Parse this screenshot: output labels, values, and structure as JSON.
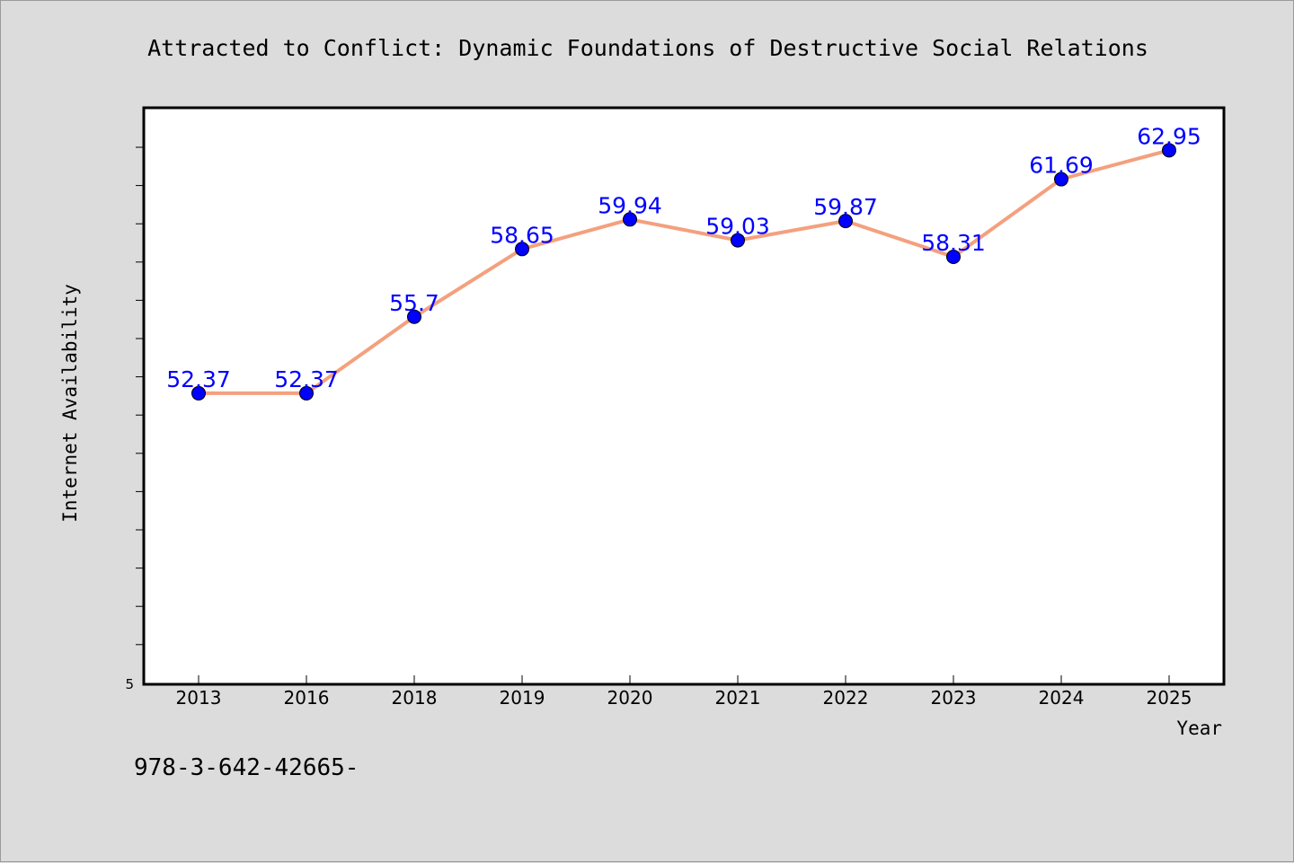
{
  "chart_data": {
    "type": "line",
    "title": "Attracted to Conflict: Dynamic Foundations of Destructive Social Relations",
    "xlabel": "Year",
    "ylabel": "Internet Availability",
    "categories": [
      "2013",
      "2016",
      "2018",
      "2019",
      "2020",
      "2021",
      "2022",
      "2023",
      "2024",
      "2025"
    ],
    "series": [
      {
        "values": [
          52.37,
          52.37,
          55.7,
          58.65,
          59.94,
          59.03,
          59.87,
          58.31,
          61.69,
          62.95
        ],
        "data_labels": [
          "52.37",
          "52.37",
          "55.7",
          "58.65",
          "59.94",
          "59.03",
          "59.87",
          "58.31",
          "61.69",
          "62.95"
        ]
      }
    ],
    "y_tick_labels": [
      "5"
    ],
    "ylim": [
      39.7,
      64.8
    ],
    "grid": false,
    "legend": "none",
    "colors": {
      "line": "#f4a07e",
      "marker": "#0000ff",
      "data_label": "#0000ff",
      "background": "#dcdcdc",
      "plot_background": "#ffffff"
    }
  },
  "footer_text": "978-3-642-42665-"
}
